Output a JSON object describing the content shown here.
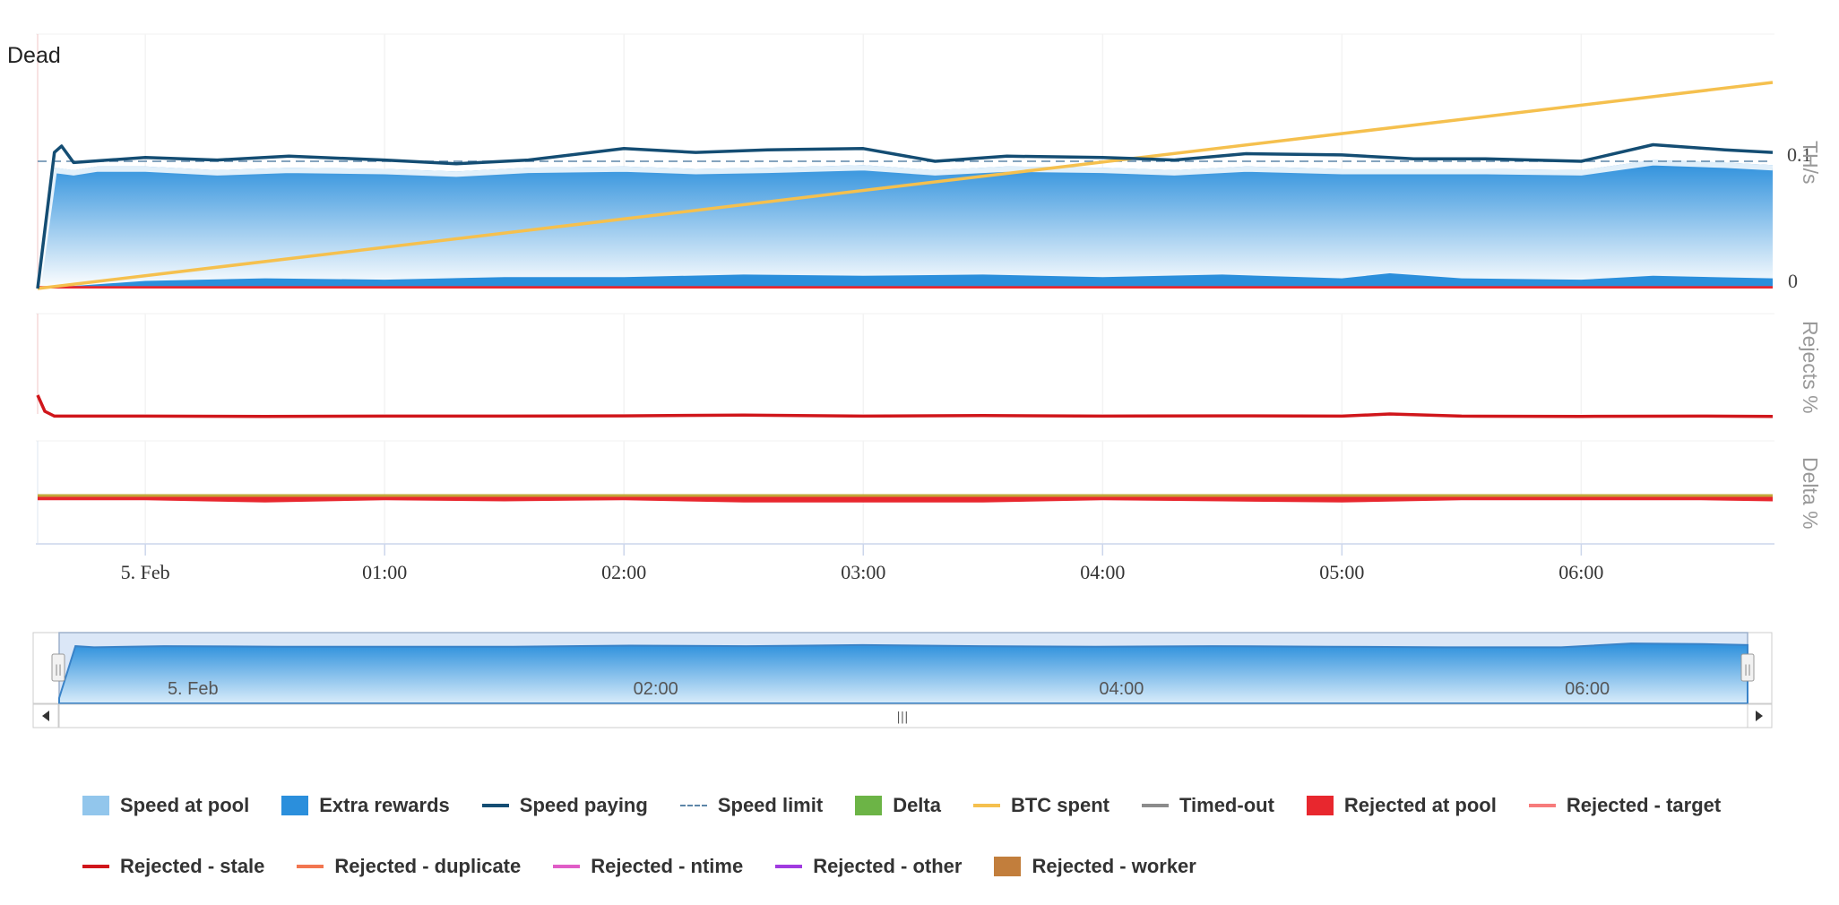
{
  "chart_data": [
    {
      "type": "area",
      "panel": "speed",
      "ylabel": "TH/s",
      "y_ticks": [
        "0.1",
        "0"
      ],
      "ylim": [
        0,
        0.2
      ],
      "x_unit": "hours since 00:00 on 5. Feb",
      "xlim": [
        -0.45,
        6.8
      ],
      "corner_text": "Dead",
      "speed_limit": 0.1,
      "series": [
        {
          "name": "Speed at pool",
          "x": [
            -0.45,
            -0.38,
            -0.3,
            -0.2,
            0,
            0.3,
            0.6,
            1,
            1.3,
            1.6,
            2,
            2.3,
            2.6,
            3,
            3.3,
            3.6,
            4,
            4.3,
            4.6,
            5,
            5.3,
            5.6,
            6,
            6.3,
            6.6,
            6.8
          ],
          "y": [
            0,
            0.095,
            0.093,
            0.096,
            0.096,
            0.093,
            0.095,
            0.094,
            0.092,
            0.095,
            0.096,
            0.094,
            0.095,
            0.097,
            0.093,
            0.096,
            0.095,
            0.093,
            0.096,
            0.094,
            0.094,
            0.094,
            0.093,
            0.101,
            0.099,
            0.097
          ]
        },
        {
          "name": "Extra rewards",
          "x": [
            -0.45,
            0,
            0.5,
            1,
            1.5,
            2,
            2.5,
            3,
            3.5,
            4,
            4.5,
            5,
            5.2,
            5.5,
            6,
            6.3,
            6.8
          ],
          "y": [
            0,
            0.006,
            0.008,
            0.007,
            0.009,
            0.009,
            0.011,
            0.01,
            0.011,
            0.009,
            0.011,
            0.008,
            0.012,
            0.008,
            0.007,
            0.01,
            0.008
          ]
        },
        {
          "name": "Speed paying",
          "x": [
            -0.45,
            -0.38,
            -0.35,
            -0.3,
            0,
            0.3,
            0.6,
            1,
            1.3,
            1.6,
            2,
            2.3,
            2.6,
            3,
            3.3,
            3.6,
            4,
            4.3,
            4.6,
            5,
            5.3,
            5.6,
            6,
            6.3,
            6.6,
            6.8
          ],
          "y": [
            0,
            0.107,
            0.112,
            0.099,
            0.103,
            0.101,
            0.104,
            0.101,
            0.098,
            0.101,
            0.11,
            0.107,
            0.109,
            0.11,
            0.1,
            0.104,
            0.103,
            0.101,
            0.106,
            0.105,
            0.102,
            0.102,
            0.1,
            0.113,
            0.109,
            0.107
          ]
        },
        {
          "name": "BTC spent",
          "x": [
            -0.45,
            6.8
          ],
          "y": [
            0,
            0.162
          ]
        },
        {
          "name": "Rejected at pool",
          "x": [
            -0.45,
            6.8
          ],
          "y": [
            0.002,
            0.002
          ]
        }
      ]
    },
    {
      "type": "line",
      "panel": "rejects",
      "ylabel": "Rejects %",
      "series": [
        {
          "name": "Rejected - stale",
          "x": [
            -0.45,
            -0.42,
            -0.38,
            0,
            0.5,
            1,
            1.5,
            2,
            2.5,
            3,
            3.5,
            4,
            4.5,
            5,
            5.2,
            5.5,
            6,
            6.5,
            6.8
          ],
          "y": [
            9,
            3,
            1.2,
            1.2,
            1.1,
            1.2,
            1.2,
            1.3,
            1.6,
            1.2,
            1.4,
            1.2,
            1.3,
            1.2,
            2,
            1.2,
            1.1,
            1.2,
            1.1
          ]
        }
      ]
    },
    {
      "type": "area",
      "panel": "delta",
      "ylabel": "Delta %",
      "series": [
        {
          "name": "Delta",
          "x": [
            -0.45,
            6.8
          ],
          "y": [
            0,
            0
          ]
        },
        {
          "name": "Rejected at pool",
          "x": [
            -0.45,
            0,
            0.5,
            1,
            1.5,
            2,
            2.5,
            3,
            3.5,
            4,
            4.5,
            5,
            5.5,
            6,
            6.5,
            6.8
          ],
          "y": [
            -2,
            -2,
            -3,
            -2,
            -2.5,
            -2,
            -3,
            -3,
            -3,
            -2,
            -2.5,
            -3,
            -2,
            -2,
            -2,
            -2.5
          ]
        }
      ]
    },
    {
      "type": "area",
      "panel": "navigator",
      "series": [
        {
          "name": "Speed at pool",
          "x": [
            -0.45,
            -0.38,
            -0.3,
            0,
            0.5,
            1,
            1.5,
            2,
            2.5,
            3,
            3.5,
            4,
            4.5,
            5,
            5.5,
            6,
            6.3,
            6.6,
            6.8
          ],
          "y": [
            0,
            0.095,
            0.093,
            0.095,
            0.094,
            0.094,
            0.094,
            0.096,
            0.095,
            0.097,
            0.095,
            0.094,
            0.095,
            0.094,
            0.093,
            0.093,
            0.1,
            0.099,
            0.097
          ]
        }
      ]
    }
  ],
  "x_axis": {
    "ticks": [
      {
        "x": 0,
        "label": "5. Feb"
      },
      {
        "x": 1,
        "label": "01:00"
      },
      {
        "x": 2,
        "label": "02:00"
      },
      {
        "x": 3,
        "label": "03:00"
      },
      {
        "x": 4,
        "label": "04:00"
      },
      {
        "x": 5,
        "label": "05:00"
      },
      {
        "x": 6,
        "label": "06:00"
      }
    ]
  },
  "navigator": {
    "ticks": [
      {
        "x": 0,
        "label": "5. Feb"
      },
      {
        "x": 2,
        "label": "02:00"
      },
      {
        "x": 4,
        "label": "04:00"
      },
      {
        "x": 6,
        "label": "06:00"
      }
    ],
    "scroll_left_icon": "arrow-left-icon",
    "scroll_right_icon": "arrow-right-icon",
    "thumb_grip": "|||",
    "handle_grip": "||"
  },
  "legend": {
    "items": [
      {
        "name": "Speed at pool",
        "symbol": "box",
        "color": "#92c6ec"
      },
      {
        "name": "Extra rewards",
        "symbol": "box",
        "color": "#2b8fdc"
      },
      {
        "name": "Speed paying",
        "symbol": "line",
        "color": "#144d73"
      },
      {
        "name": "Speed limit",
        "symbol": "dash",
        "color": "#5d86a8"
      },
      {
        "name": "Delta",
        "symbol": "box",
        "color": "#6cb446"
      },
      {
        "name": "BTC spent",
        "symbol": "line",
        "color": "#f5c04e"
      },
      {
        "name": "Timed-out",
        "symbol": "line",
        "color": "#8c8c8c"
      },
      {
        "name": "Rejected at pool",
        "symbol": "box",
        "color": "#e8272e"
      },
      {
        "name": "Rejected - target",
        "symbol": "line",
        "color": "#f77b7b"
      },
      {
        "name": "Rejected - stale",
        "symbol": "line",
        "color": "#d0161b"
      },
      {
        "name": "Rejected - duplicate",
        "symbol": "line",
        "color": "#f27650"
      },
      {
        "name": "Rejected - ntime",
        "symbol": "line",
        "color": "#e05dc7"
      },
      {
        "name": "Rejected - other",
        "symbol": "line",
        "color": "#a13be0"
      },
      {
        "name": "Rejected - worker",
        "symbol": "box",
        "color": "#c27e3c"
      }
    ]
  },
  "colors": {
    "speed_area_top": "#2b8fdc",
    "speed_area_bottom": "#ffffff",
    "speed_paying": "#144d73",
    "btc_spent": "#f5c04e",
    "rejected": "#e8272e",
    "stale": "#d0161b",
    "delta": "#6cb446",
    "axis_label": "#999999"
  }
}
